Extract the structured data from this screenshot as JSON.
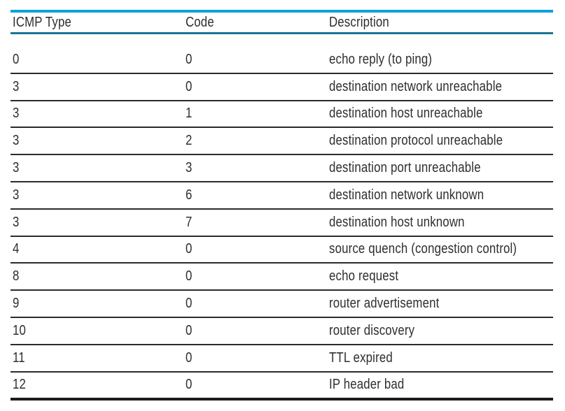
{
  "table": {
    "columns": [
      "ICMP Type",
      "Code",
      "Description"
    ],
    "rows": [
      [
        "0",
        "0",
        "echo reply (to ping)"
      ],
      [
        "3",
        "0",
        "destination network unreachable"
      ],
      [
        "3",
        "1",
        "destination host unreachable"
      ],
      [
        "3",
        "2",
        "destination protocol unreachable"
      ],
      [
        "3",
        "3",
        "destination port unreachable"
      ],
      [
        "3",
        "6",
        "destination network unknown"
      ],
      [
        "3",
        "7",
        "destination host unknown"
      ],
      [
        "4",
        "0",
        "source quench (congestion control)"
      ],
      [
        "8",
        "0",
        "echo request"
      ],
      [
        "9",
        "0",
        "router advertisement"
      ],
      [
        "10",
        "0",
        "router discovery"
      ],
      [
        "11",
        "0",
        "TTL expired"
      ],
      [
        "12",
        "0",
        "IP header bad"
      ]
    ],
    "colors": {
      "top_rule": "#0ba2dc",
      "header_rule": "#1b7595",
      "row_rule": "#2b2b2b",
      "bottom_rule": "#1c1c1c",
      "text": "#2e2e2e"
    }
  }
}
